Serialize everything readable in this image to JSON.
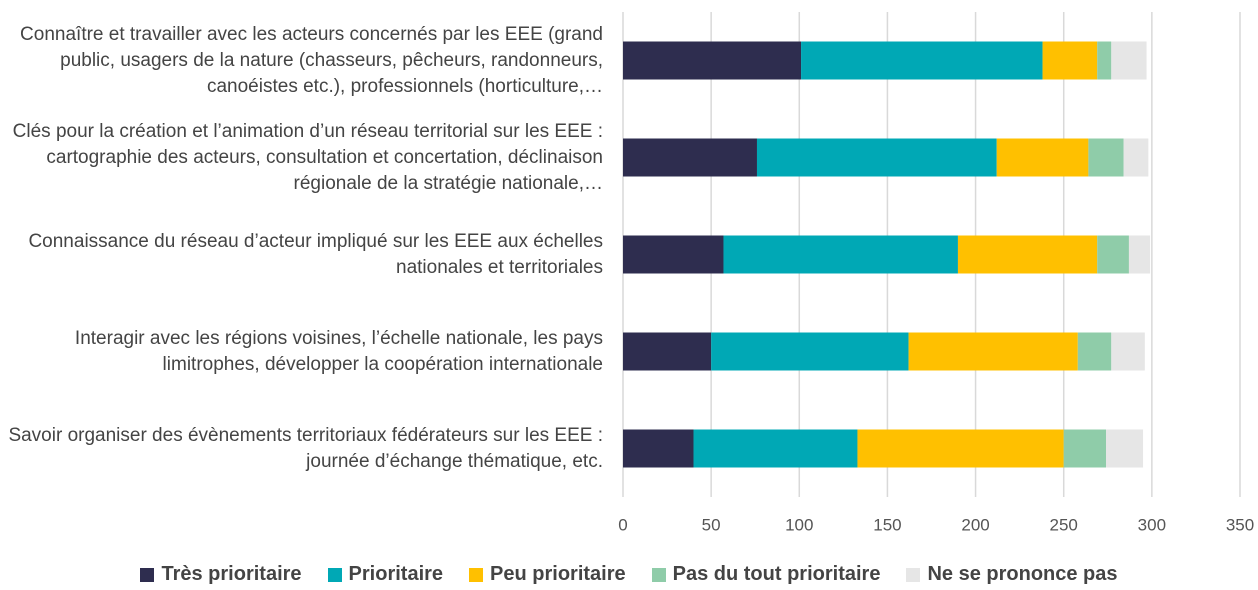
{
  "chart_data": {
    "type": "stacked-bar-horizontal",
    "categories": [
      "Connaître et travailler avec les acteurs concernés par les EEE (grand public, usagers de la nature (chasseurs, pêcheurs, randonneurs, canoéistes etc.), professionnels (horticulture,…",
      "Clés pour la création et l’animation d’un réseau territorial sur les EEE : cartographie des acteurs, consultation et concertation, déclinaison régionale de la stratégie nationale,…",
      "Connaissance du réseau d’acteur impliqué sur les EEE aux échelles nationales et territoriales",
      "Interagir avec les régions voisines, l’échelle nationale, les pays limitrophes, développer la coopération internationale",
      "Savoir organiser des évènements territoriaux fédérateurs sur les EEE : journée d’échange thématique, etc."
    ],
    "series": [
      {
        "name": "Très prioritaire",
        "color": "#2e2d4f",
        "values": [
          101,
          76,
          57,
          50,
          40
        ]
      },
      {
        "name": "Prioritaire",
        "color": "#00a8b5",
        "values": [
          137,
          136,
          133,
          112,
          93
        ]
      },
      {
        "name": "Peu prioritaire",
        "color": "#ffc000",
        "values": [
          31,
          52,
          79,
          96,
          117
        ]
      },
      {
        "name": "Pas du tout prioritaire",
        "color": "#8fcca9",
        "values": [
          8,
          20,
          18,
          19,
          24
        ]
      },
      {
        "name": "Ne se prononce pas",
        "color": "#e6e6e6",
        "values": [
          20,
          14,
          12,
          19,
          21
        ]
      }
    ],
    "xlim": [
      0,
      350
    ],
    "xticks": [
      0,
      50,
      100,
      150,
      200,
      250,
      300,
      350
    ],
    "grid": true,
    "legend": "bottom"
  }
}
